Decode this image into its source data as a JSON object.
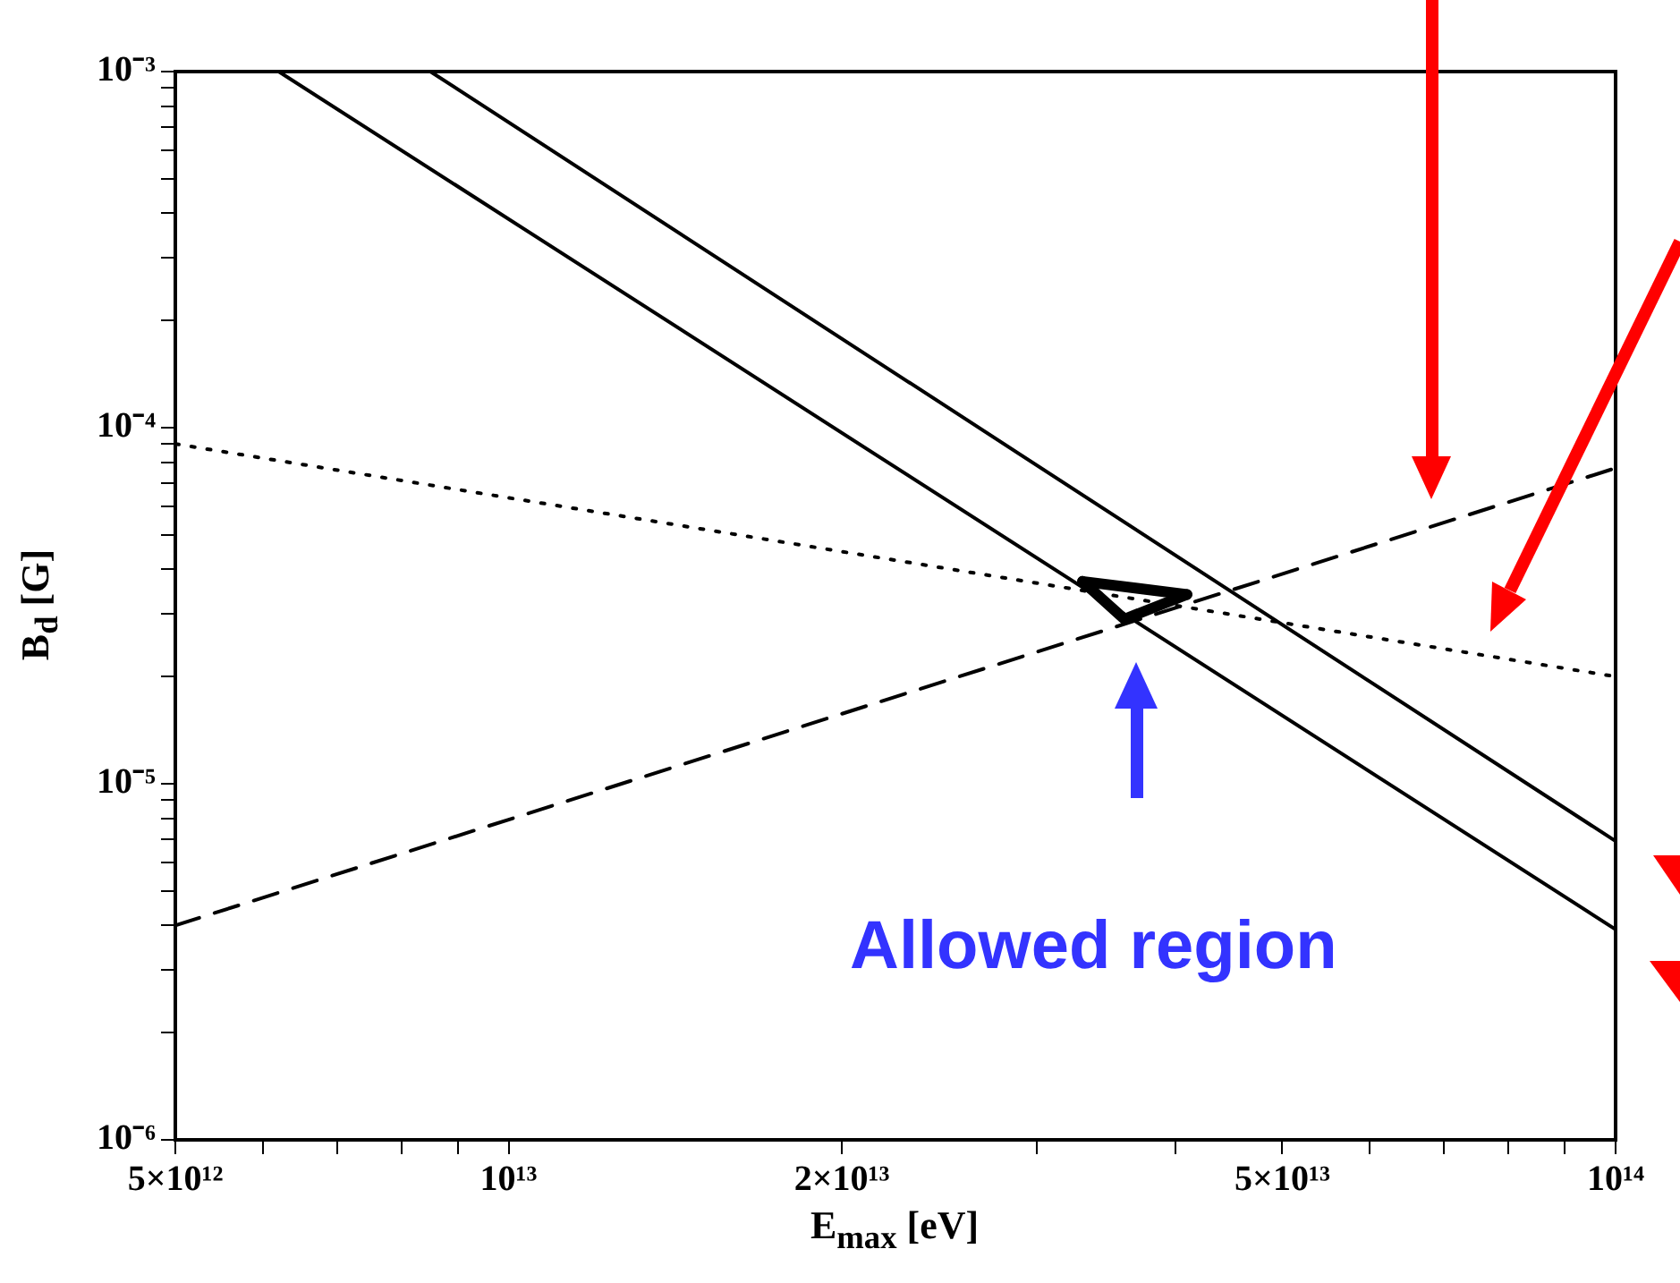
{
  "chart_data": {
    "type": "line",
    "xlabel": "E$_{max}$ [eV]",
    "ylabel": "B$_{d}$ [G]",
    "log": "xy",
    "marker": "none",
    "xlim": [
      5000000000000.0,
      100000000000000.0
    ],
    "ylim": [
      1e-06,
      0.001
    ],
    "xticks": [
      {
        "value": 5000000000000.0,
        "label": "5×10¹²"
      },
      {
        "value": 6000000000000.0,
        "label": null
      },
      {
        "value": 7000000000000.0,
        "label": null
      },
      {
        "value": 8000000000000.0,
        "label": null
      },
      {
        "value": 9000000000000.0,
        "label": null
      },
      {
        "value": 10000000000000.0,
        "label": "10¹³"
      },
      {
        "value": 20000000000000.0,
        "label": "2×10¹³"
      },
      {
        "value": 30000000000000.0,
        "label": null
      },
      {
        "value": 40000000000000.0,
        "label": null
      },
      {
        "value": 50000000000000.0,
        "label": "5×10¹³"
      },
      {
        "value": 60000000000000.0,
        "label": null
      },
      {
        "value": 70000000000000.0,
        "label": null
      },
      {
        "value": 80000000000000.0,
        "label": null
      },
      {
        "value": 90000000000000.0,
        "label": null
      },
      {
        "value": 100000000000000.0,
        "label": "10¹⁴"
      }
    ],
    "yticks": [
      {
        "value": 1e-06,
        "label": "10⁻⁶"
      },
      {
        "value": 2e-06,
        "label": null
      },
      {
        "value": 3e-06,
        "label": null
      },
      {
        "value": 4e-06,
        "label": null
      },
      {
        "value": 5e-06,
        "label": null
      },
      {
        "value": 6e-06,
        "label": null
      },
      {
        "value": 7e-06,
        "label": null
      },
      {
        "value": 8e-06,
        "label": null
      },
      {
        "value": 9e-06,
        "label": null
      },
      {
        "value": 1e-05,
        "label": "10⁻⁵"
      },
      {
        "value": 2e-05,
        "label": null
      },
      {
        "value": 3e-05,
        "label": null
      },
      {
        "value": 4e-05,
        "label": null
      },
      {
        "value": 5e-05,
        "label": null
      },
      {
        "value": 6e-05,
        "label": null
      },
      {
        "value": 7e-05,
        "label": null
      },
      {
        "value": 8e-05,
        "label": null
      },
      {
        "value": 9e-05,
        "label": null
      },
      {
        "value": 0.0001,
        "label": "10⁻⁴"
      },
      {
        "value": 0.0002,
        "label": null
      },
      {
        "value": 0.0003,
        "label": null
      },
      {
        "value": 0.0004,
        "label": null
      },
      {
        "value": 0.0005,
        "label": null
      },
      {
        "value": 0.0006,
        "label": null
      },
      {
        "value": 0.0007,
        "label": null
      },
      {
        "value": 0.0008,
        "label": null
      },
      {
        "value": 0.0009,
        "label": null
      },
      {
        "value": 0.001,
        "label": "10⁻³"
      }
    ],
    "series": [
      {
        "color": "#000000",
        "line_style": "solid",
        "x": [
          8500000000000.0,
          100000000000000.0
        ],
        "values": [
          0.001,
          6.9e-06
        ]
      },
      {
        "color": "#000000",
        "line_style": "solid",
        "x": [
          6200000000000.0,
          100000000000000.0
        ],
        "values": [
          0.001,
          3.9e-06
        ]
      },
      {
        "color": "#000000",
        "line_style": "dotted",
        "x": [
          5000000000000.0,
          100000000000000.0
        ],
        "values": [
          9e-05,
          2e-05
        ]
      },
      {
        "color": "#000000",
        "line_style": "dashed",
        "x": [
          5000000000000.0,
          100000000000000.0
        ],
        "values": [
          4e-06,
          7.7e-05
        ]
      },
      {
        "color": "#000000",
        "line_style": "solid",
        "x": [
          33000000000000.0,
          41000000000000.0
        ],
        "values": [
          3.7e-05,
          3.4e-05
        ]
      },
      {
        "color": "#000000",
        "line_style": "solid",
        "x": [
          33000000000000.0,
          36000000000000.0,
          41000000000000.0
        ],
        "values": [
          3.7e-05,
          2.9e-05,
          3.4e-05
        ]
      }
    ],
    "annotations": [
      "Allowed region"
    ]
  }
}
